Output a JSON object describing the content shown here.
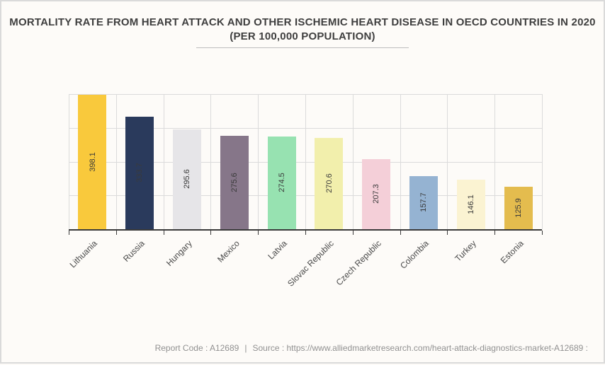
{
  "title": {
    "line1": "MORTALITY RATE FROM HEART ATTACK AND OTHER ISCHEMIC HEART DISEASE IN OECD COUNTRIES IN 2020",
    "line2": "(PER 100,000 POPULATION)"
  },
  "footer": {
    "report_code": "Report Code : A12689",
    "separator": "|",
    "source": "Source : https://www.alliedmarketresearch.com/heart-attack-diagnostics-market-A12689 :"
  },
  "chart_data": {
    "type": "bar",
    "title": "MORTALITY RATE FROM HEART ATTACK AND OTHER ISCHEMIC HEART DISEASE IN OECD COUNTRIES IN 2020 (PER 100,000 POPULATION)",
    "categories": [
      "Lithuania",
      "Russia",
      "Hungary",
      "Mexico",
      "Latvia",
      "Slovac Republic",
      "Czech Republic",
      "Colombia",
      "Turkey",
      "Estonia"
    ],
    "values": [
      398.1,
      333.7,
      295.6,
      275.6,
      274.5,
      270.6,
      207.3,
      157.7,
      146.1,
      125.9
    ],
    "bar_colors": [
      "#f9c93c",
      "#2a3a5c",
      "#e6e5e8",
      "#867689",
      "#97e2b1",
      "#f2efac",
      "#f4cfd8",
      "#95b3d2",
      "#fbf3d2",
      "#e4bc4e"
    ],
    "xlabel": "",
    "ylabel": "",
    "ylim": [
      0,
      400
    ],
    "gridlines": [
      100,
      200,
      300,
      400
    ],
    "grid": true,
    "legend": false,
    "value_labels": "inside-rotated-90",
    "xtick_rotation": 45,
    "grid_color": "#dbdbdb",
    "axis_color": "#3a3a3a",
    "value_label_color": "#3a3a3a",
    "xtick_label_color": "#4a4a4a"
  }
}
